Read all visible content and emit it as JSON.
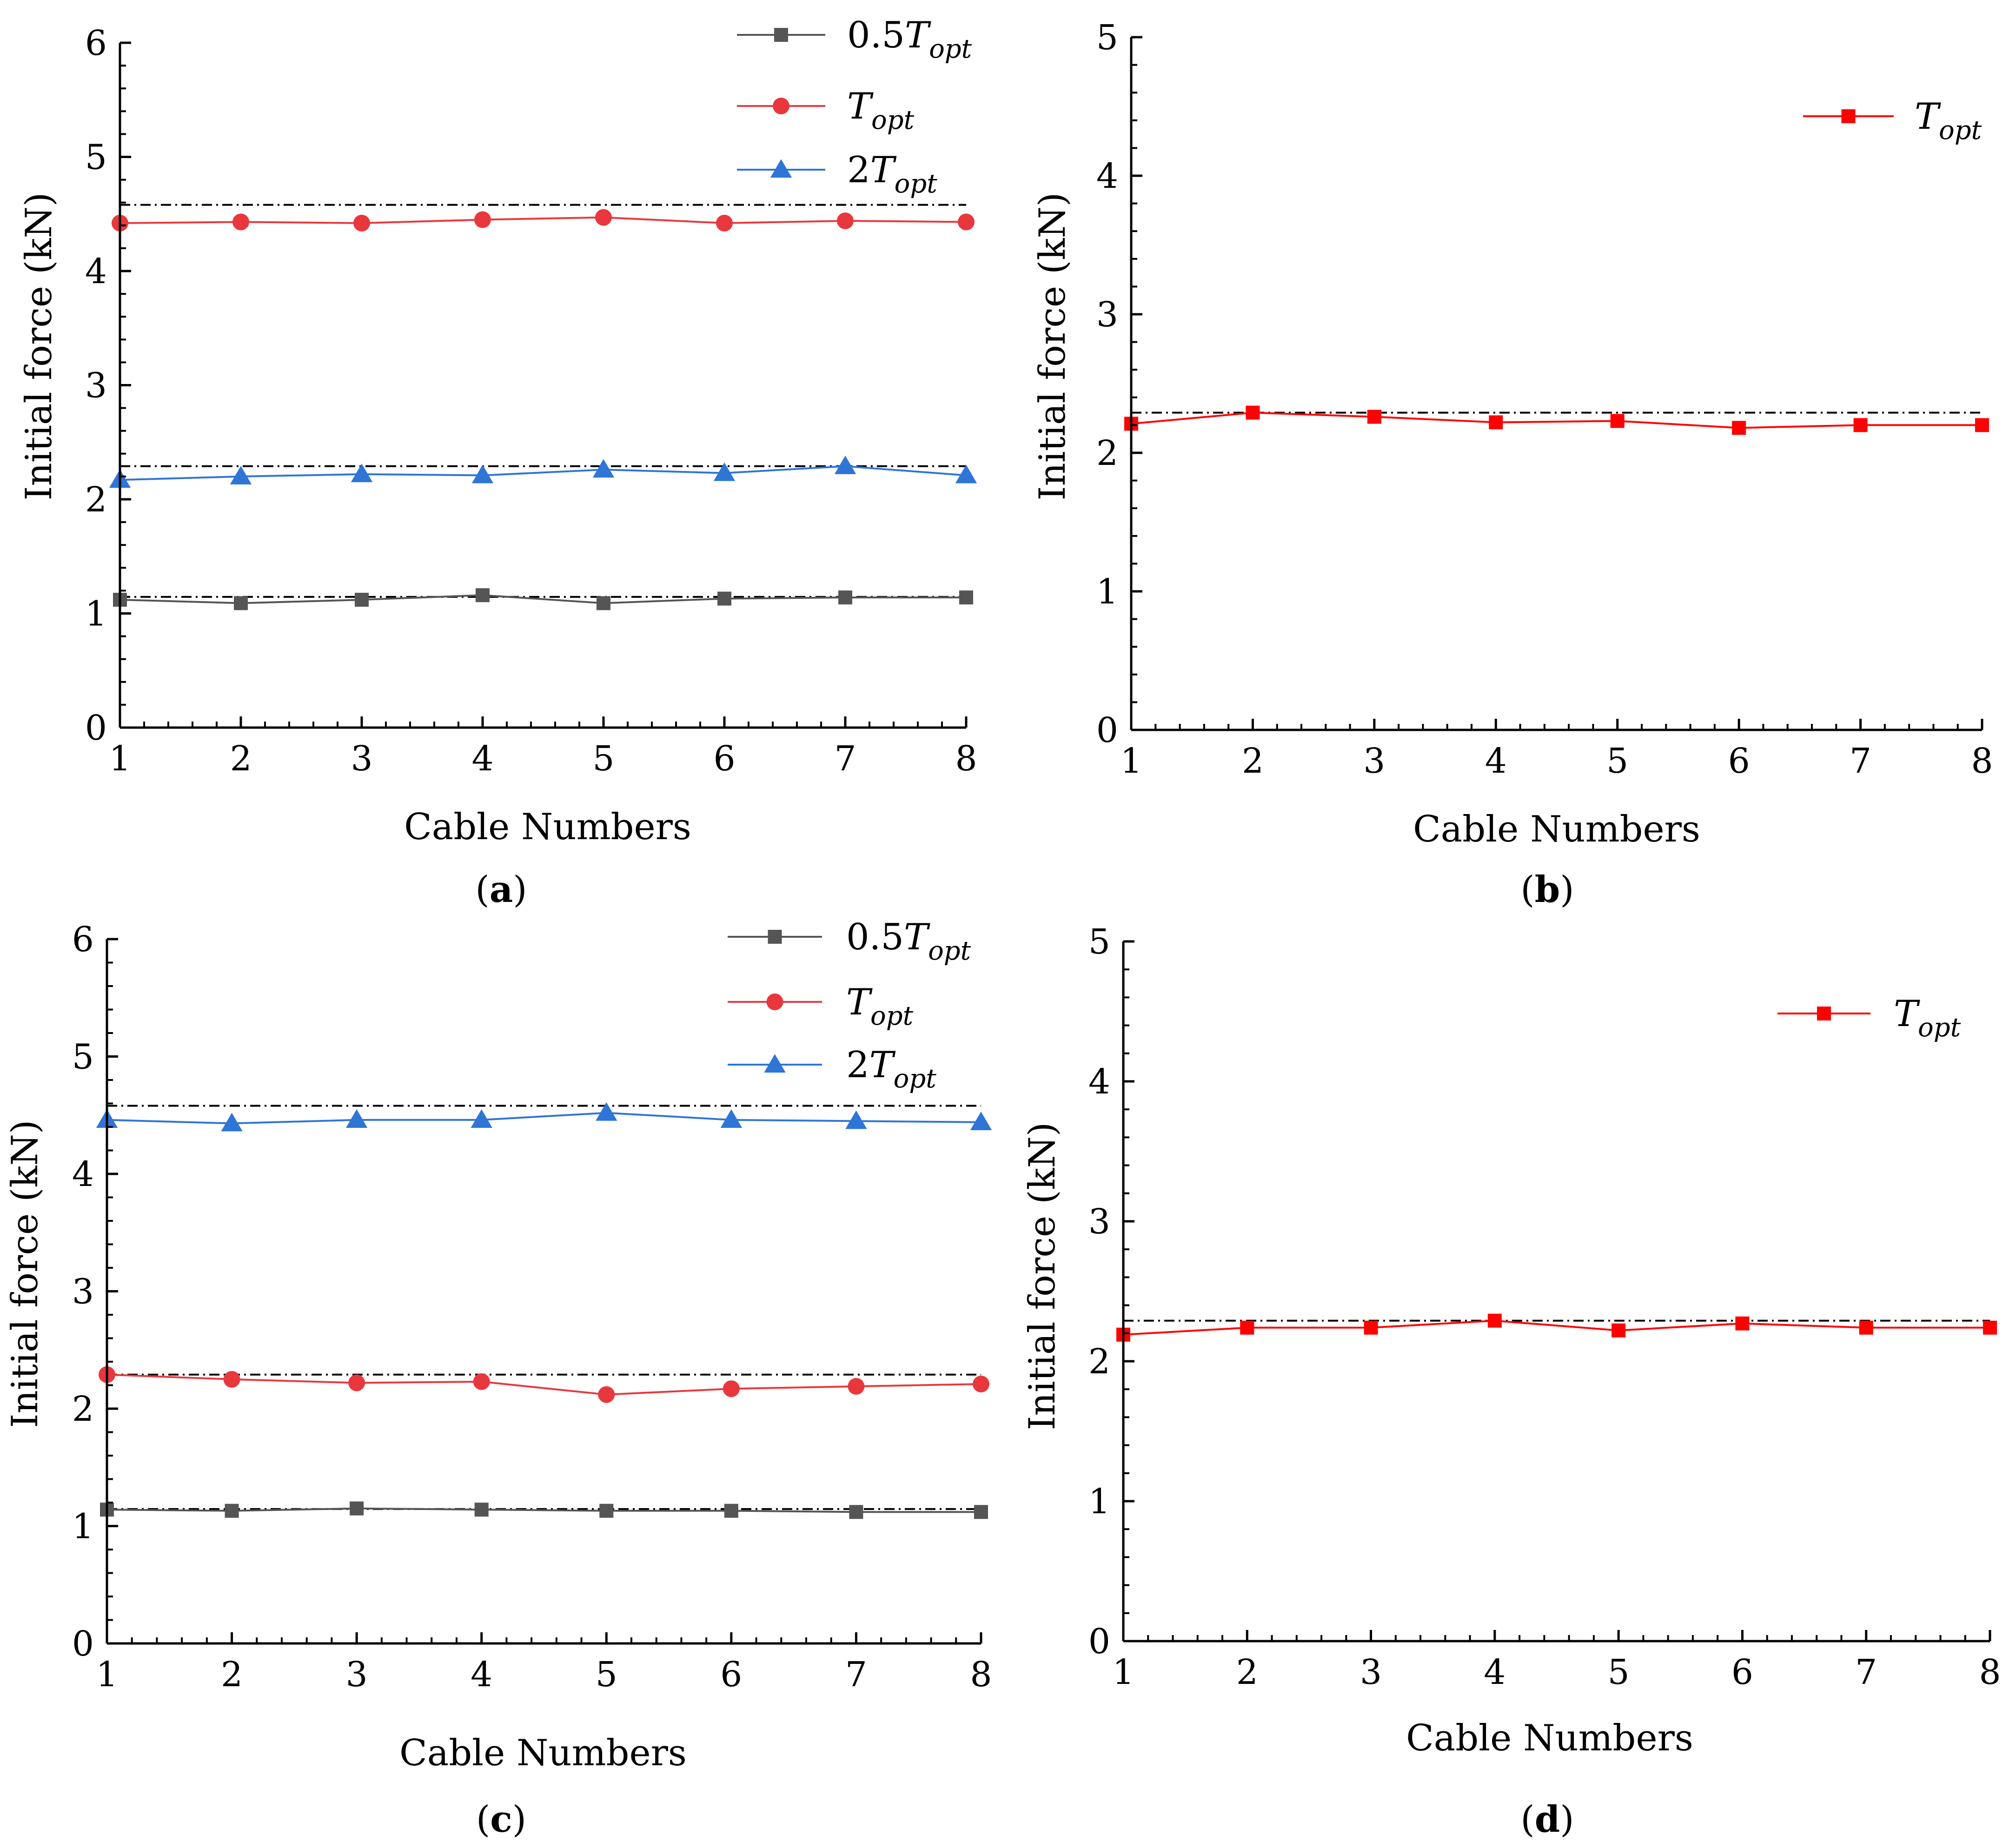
{
  "chart_data": [
    {
      "type": "line",
      "panel_label": "a",
      "xlabel": "Cable Numbers",
      "ylabel": "Initial force (kN)",
      "xlim": [
        1,
        8
      ],
      "ylim": [
        0,
        6
      ],
      "x": [
        1,
        2,
        3,
        4,
        5,
        6,
        7,
        8
      ],
      "xticks": [
        "1",
        "2",
        "3",
        "4",
        "5",
        "6",
        "7",
        "8"
      ],
      "yticks": [
        "0",
        "1",
        "2",
        "3",
        "4",
        "5",
        "6"
      ],
      "legend_position": "top-right",
      "series": [
        {
          "name": "0.5T_opt",
          "legend_prefix": "0.5",
          "legend_base": "T",
          "legend_sub": "opt",
          "marker": "square",
          "color": "#555555",
          "values": [
            1.12,
            1.09,
            1.12,
            1.16,
            1.09,
            1.13,
            1.14,
            1.14
          ]
        },
        {
          "name": "T_opt",
          "legend_prefix": "",
          "legend_base": "T",
          "legend_sub": "opt",
          "marker": "circle",
          "color": "#e8383d",
          "values": [
            4.42,
            4.43,
            4.42,
            4.45,
            4.47,
            4.42,
            4.44,
            4.43
          ]
        },
        {
          "name": "2T_opt",
          "legend_prefix": "2",
          "legend_base": "T",
          "legend_sub": "opt",
          "marker": "triangle",
          "color": "#2e75d6",
          "values": [
            2.17,
            2.2,
            2.22,
            2.21,
            2.26,
            2.23,
            2.29,
            2.21
          ]
        }
      ],
      "reference_lines": [
        4.58,
        2.29,
        1.145
      ]
    },
    {
      "type": "line",
      "panel_label": "b",
      "xlabel": "Cable Numbers",
      "ylabel": "Initial force (kN)",
      "xlim": [
        1,
        8
      ],
      "ylim": [
        0,
        5
      ],
      "x": [
        1,
        2,
        3,
        4,
        5,
        6,
        7,
        8
      ],
      "xticks": [
        "1",
        "2",
        "3",
        "4",
        "5",
        "6",
        "7",
        "8"
      ],
      "yticks": [
        "0",
        "1",
        "2",
        "3",
        "4",
        "5"
      ],
      "legend_position": "top-right",
      "series": [
        {
          "name": "T_opt",
          "legend_prefix": "",
          "legend_base": "T",
          "legend_sub": "opt",
          "marker": "square",
          "color": "#ff0000",
          "values": [
            2.21,
            2.29,
            2.26,
            2.22,
            2.23,
            2.18,
            2.2,
            2.2
          ]
        }
      ],
      "reference_lines": [
        2.29
      ]
    },
    {
      "type": "line",
      "panel_label": "c",
      "xlabel": "Cable Numbers",
      "ylabel": "Initial force (kN)",
      "xlim": [
        1,
        8
      ],
      "ylim": [
        0,
        6
      ],
      "x": [
        1,
        2,
        3,
        4,
        5,
        6,
        7,
        8
      ],
      "xticks": [
        "1",
        "2",
        "3",
        "4",
        "5",
        "6",
        "7",
        "8"
      ],
      "yticks": [
        "0",
        "1",
        "2",
        "3",
        "4",
        "5",
        "6"
      ],
      "legend_position": "top-right",
      "series": [
        {
          "name": "0.5T_opt",
          "legend_prefix": "0.5",
          "legend_base": "T",
          "legend_sub": "opt",
          "marker": "square",
          "color": "#555555",
          "values": [
            1.14,
            1.13,
            1.15,
            1.14,
            1.13,
            1.13,
            1.12,
            1.12
          ]
        },
        {
          "name": "T_opt",
          "legend_prefix": "",
          "legend_base": "T",
          "legend_sub": "opt",
          "marker": "circle",
          "color": "#e8383d",
          "values": [
            2.29,
            2.25,
            2.22,
            2.23,
            2.12,
            2.17,
            2.19,
            2.21
          ]
        },
        {
          "name": "2T_opt",
          "legend_prefix": "2",
          "legend_base": "T",
          "legend_sub": "opt",
          "marker": "triangle",
          "color": "#2e75d6",
          "values": [
            4.46,
            4.43,
            4.46,
            4.46,
            4.52,
            4.46,
            4.45,
            4.44
          ]
        }
      ],
      "reference_lines": [
        4.58,
        2.29,
        1.145
      ]
    },
    {
      "type": "line",
      "panel_label": "d",
      "xlabel": "Cable Numbers",
      "ylabel": "Initial force (kN)",
      "xlim": [
        1,
        8
      ],
      "ylim": [
        0,
        5
      ],
      "x": [
        1,
        2,
        3,
        4,
        5,
        6,
        7,
        8
      ],
      "xticks": [
        "1",
        "2",
        "3",
        "4",
        "5",
        "6",
        "7",
        "8"
      ],
      "yticks": [
        "0",
        "1",
        "2",
        "3",
        "4",
        "5"
      ],
      "legend_position": "top-right",
      "series": [
        {
          "name": "T_opt",
          "legend_prefix": "",
          "legend_base": "T",
          "legend_sub": "opt",
          "marker": "square",
          "color": "#ff0000",
          "values": [
            2.19,
            2.24,
            2.24,
            2.29,
            2.22,
            2.27,
            2.24,
            2.24
          ]
        }
      ],
      "reference_lines": [
        2.29
      ]
    }
  ]
}
